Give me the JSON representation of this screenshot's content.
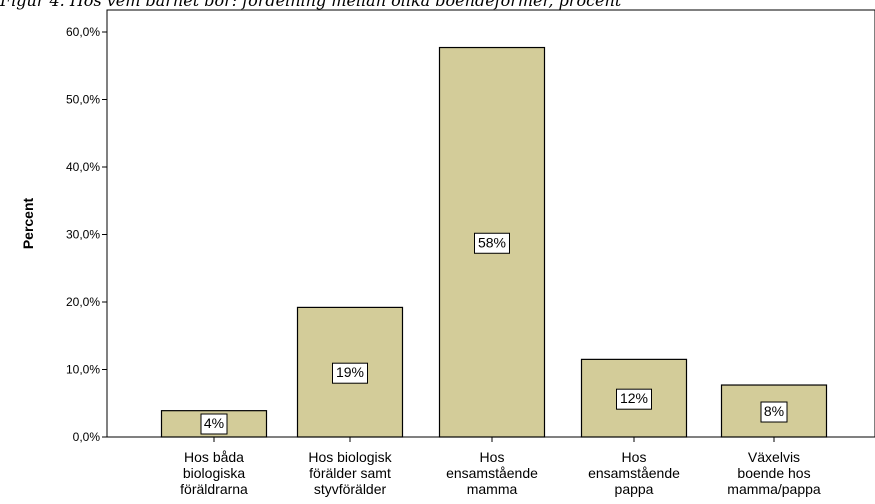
{
  "caption": "Figur 4. Hos vem barnet bor: fördelning mellan olika boendeformer, procent",
  "chart_data": {
    "type": "bar",
    "title": "",
    "xlabel": "",
    "ylabel": "Percent",
    "ylim": [
      0,
      65
    ],
    "yticks": [
      "0,0%",
      "10,0%",
      "20,0%",
      "30,0%",
      "40,0%",
      "50,0%",
      "60,0%"
    ],
    "ytick_values": [
      0,
      10,
      20,
      30,
      40,
      50,
      60
    ],
    "categories": [
      [
        "Hos båda",
        "biologiska",
        "föräldrarna"
      ],
      [
        "Hos biologisk",
        "förälder samt",
        "styvförälder"
      ],
      [
        "Hos",
        "ensamstående",
        "mamma"
      ],
      [
        "Hos",
        "ensamstående",
        "pappa"
      ],
      [
        "Växelvis",
        "boende hos",
        "mamma/pappa"
      ]
    ],
    "values": [
      3.9,
      19.2,
      57.7,
      11.5,
      7.7
    ],
    "data_labels": [
      "4%",
      "19%",
      "58%",
      "12%",
      "8%"
    ],
    "grid": false,
    "colors": {
      "bar_fill": "#d3cc99",
      "bar_stroke": "#000000",
      "axis": "#000000"
    }
  }
}
